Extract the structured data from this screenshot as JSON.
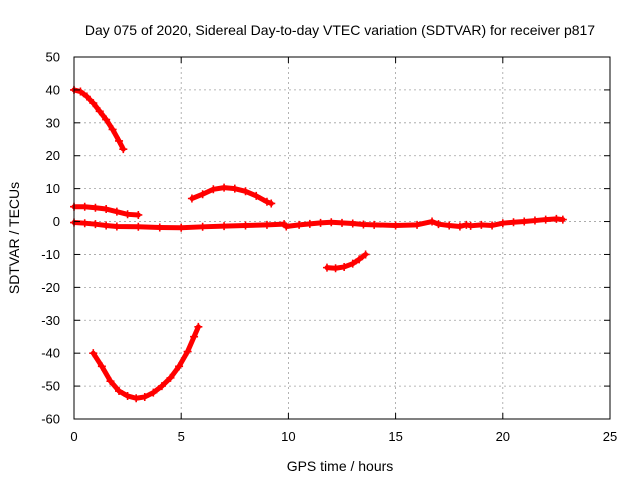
{
  "chart_data": {
    "type": "scatter",
    "title": "Day 075 of 2020, Sidereal Day-to-day VTEC variation (SDTVAR) for receiver p817",
    "xlabel": "GPS time / hours",
    "ylabel": "SDTVAR / TECUs",
    "xlim": [
      0,
      25
    ],
    "ylim": [
      -60,
      50
    ],
    "xticks": [
      "0",
      "5",
      "10",
      "15",
      "20",
      "25"
    ],
    "yticks": [
      "50",
      "40",
      "30",
      "20",
      "10",
      "0",
      "-10",
      "-20",
      "-30",
      "-40",
      "-50",
      "-60"
    ],
    "grid": true,
    "color": "#ff0000",
    "marker": "plus",
    "series": [
      {
        "points": [
          [
            0.0,
            40
          ],
          [
            0.3,
            39.5
          ],
          [
            0.6,
            38
          ],
          [
            0.9,
            36
          ],
          [
            1.2,
            33.5
          ],
          [
            1.5,
            31
          ],
          [
            1.8,
            28
          ],
          [
            2.1,
            24.5
          ],
          [
            2.3,
            22
          ]
        ]
      },
      {
        "points": [
          [
            0.0,
            4.5
          ],
          [
            0.5,
            4.5
          ],
          [
            1.0,
            4.2
          ],
          [
            1.5,
            3.8
          ],
          [
            2.0,
            3
          ],
          [
            2.5,
            2.2
          ],
          [
            3.0,
            2
          ]
        ]
      },
      {
        "points": [
          [
            0.0,
            -0.3
          ],
          [
            0.5,
            -0.5
          ],
          [
            1.0,
            -0.8
          ],
          [
            1.5,
            -1.2
          ],
          [
            2.0,
            -1.5
          ],
          [
            3.0,
            -1.6
          ],
          [
            4.0,
            -1.8
          ],
          [
            5.0,
            -1.9
          ],
          [
            6.0,
            -1.6
          ],
          [
            7.0,
            -1.4
          ],
          [
            8.0,
            -1.2
          ],
          [
            9.0,
            -1.0
          ],
          [
            9.8,
            -0.8
          ]
        ]
      },
      {
        "points": [
          [
            9.9,
            -1.5
          ],
          [
            10.5,
            -1.0
          ],
          [
            11.0,
            -0.7
          ],
          [
            11.5,
            -0.4
          ],
          [
            12.0,
            -0.2
          ],
          [
            12.5,
            -0.4
          ],
          [
            13.0,
            -0.6
          ],
          [
            13.5,
            -0.9
          ],
          [
            14.0,
            -1.0
          ],
          [
            15.0,
            -1.2
          ],
          [
            16.0,
            -1.0
          ],
          [
            16.7,
            0.0
          ],
          [
            17.0,
            -0.8
          ],
          [
            17.5,
            -1.2
          ],
          [
            18.0,
            -1.5
          ],
          [
            18.3,
            -1.0
          ],
          [
            18.5,
            -1.3
          ],
          [
            19.0,
            -1.0
          ],
          [
            19.5,
            -1.2
          ],
          [
            20.0,
            -0.5
          ],
          [
            20.5,
            -0.2
          ],
          [
            21.0,
            0.0
          ],
          [
            21.5,
            0.3
          ],
          [
            22.0,
            0.6
          ],
          [
            22.5,
            0.8
          ],
          [
            22.8,
            0.6
          ]
        ]
      },
      {
        "points": [
          [
            5.5,
            7
          ],
          [
            6.0,
            8.3
          ],
          [
            6.5,
            9.8
          ],
          [
            7.0,
            10.3
          ],
          [
            7.5,
            10
          ],
          [
            8.0,
            9.2
          ],
          [
            8.5,
            7.8
          ],
          [
            9.0,
            6
          ],
          [
            9.2,
            5.5
          ]
        ]
      },
      {
        "points": [
          [
            11.8,
            -14
          ],
          [
            12.2,
            -14.2
          ],
          [
            12.6,
            -13.8
          ],
          [
            13.0,
            -12.8
          ],
          [
            13.3,
            -11.5
          ],
          [
            13.6,
            -10
          ]
        ]
      },
      {
        "points": [
          [
            0.9,
            -40
          ],
          [
            1.3,
            -44
          ],
          [
            1.7,
            -48.5
          ],
          [
            2.1,
            -51.5
          ],
          [
            2.5,
            -53
          ],
          [
            2.9,
            -53.7
          ],
          [
            3.3,
            -53.3
          ],
          [
            3.7,
            -52
          ],
          [
            4.1,
            -50
          ],
          [
            4.5,
            -47.5
          ],
          [
            4.9,
            -44
          ],
          [
            5.3,
            -39.5
          ],
          [
            5.6,
            -35
          ],
          [
            5.8,
            -32
          ]
        ]
      }
    ]
  }
}
